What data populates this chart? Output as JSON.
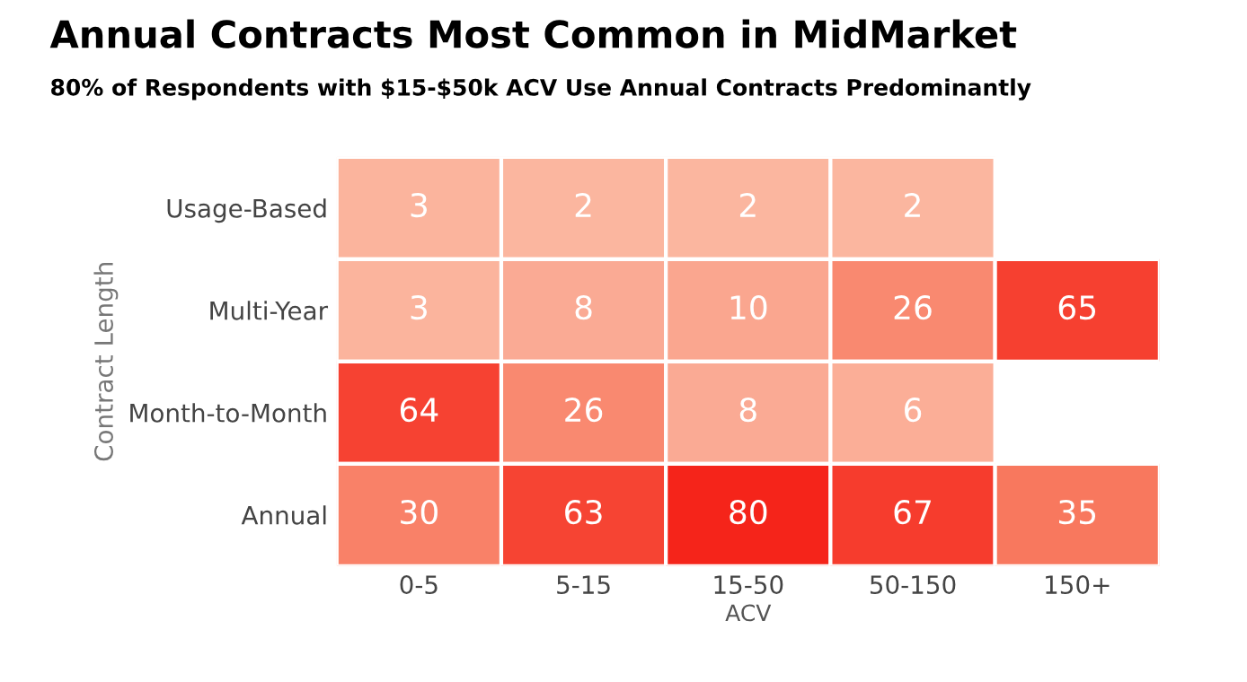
{
  "chart_data": {
    "type": "heatmap",
    "title": "Annual Contracts Most Common in MidMarket",
    "subtitle": "80% of Respondents with $15-$50k ACV Use Annual Contracts Predominantly",
    "xlabel": "ACV",
    "ylabel": "Contract Length",
    "categories": [
      "0-5",
      "5-15",
      "15-50",
      "50-150",
      "150+"
    ],
    "y_categories": [
      "Usage-Based",
      "Multi-Year",
      "Month-to-Month",
      "Annual"
    ],
    "cells": [
      [
        3,
        2,
        2,
        2,
        null
      ],
      [
        3,
        8,
        10,
        26,
        65
      ],
      [
        64,
        26,
        8,
        6,
        null
      ],
      [
        30,
        63,
        80,
        67,
        35
      ]
    ],
    "data_labels": true
  }
}
